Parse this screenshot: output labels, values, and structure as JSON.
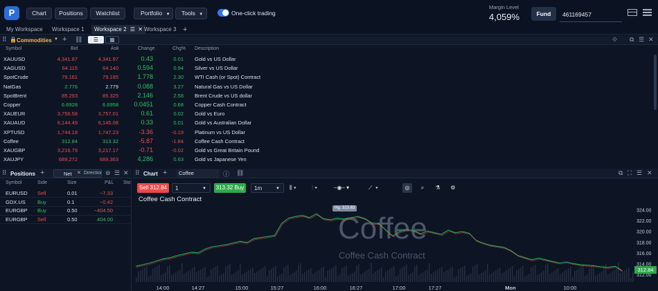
{
  "topbar": {
    "logo": "P",
    "nav": [
      "Chart",
      "Positions",
      "Watchlist"
    ],
    "portfolio": "Portfolio",
    "tools": "Tools",
    "one_click": "One-click trading",
    "margin_label": "Margin Level",
    "margin_value": "4,059%",
    "fund": "Fund",
    "account": "461169457"
  },
  "workspaces": [
    "My Workspace",
    "Workspace 1",
    "Workspace 2",
    "Workspace 3"
  ],
  "watchlist": {
    "title": "Commodities",
    "columns": [
      "Symbol",
      "Bid",
      "Ask",
      "Change",
      "Chg%",
      "Description"
    ],
    "rows": [
      {
        "symbol": "XAUUSD",
        "bid": "4,341.87",
        "ask": "4,341.97",
        "change": "0.43",
        "chg": "0.01",
        "desc": "Gold vs US Dollar",
        "bid_c": "red",
        "ask_c": "red",
        "ch_c": "green"
      },
      {
        "symbol": "XAGUSD",
        "bid": "64.115",
        "ask": "64.140",
        "change": "0.594",
        "chg": "0.94",
        "desc": "Silver vs US Dollar",
        "bid_c": "red",
        "ask_c": "red",
        "ch_c": "green"
      },
      {
        "symbol": "SpotCrude",
        "bid": "79.161",
        "ask": "79.185",
        "change": "1.778",
        "chg": "2.30",
        "desc": "WTI Cash (or Spot) Contract",
        "bid_c": "red",
        "ask_c": "red",
        "ch_c": "green"
      },
      {
        "symbol": "NatGas",
        "bid": "2.776",
        "ask": "2.779",
        "change": "0.088",
        "chg": "3.27",
        "desc": "Natural Gas vs US Dollar",
        "bid_c": "green",
        "ask_c": "wht",
        "ch_c": "green"
      },
      {
        "symbol": "SpotBrent",
        "bid": "85.293",
        "ask": "85.325",
        "change": "2.146",
        "chg": "2.58",
        "desc": "Brent Crude vs US dollar",
        "bid_c": "red",
        "ask_c": "red",
        "ch_c": "green"
      },
      {
        "symbol": "Copper",
        "bid": "6.6928",
        "ask": "6.6958",
        "change": "0.0451",
        "chg": "0.68",
        "desc": "Copper Cash Contract",
        "bid_c": "green",
        "ask_c": "green",
        "ch_c": "green"
      },
      {
        "symbol": "XAUEUR",
        "bid": "3,756.58",
        "ask": "3,757.01",
        "change": "0.61",
        "chg": "0.02",
        "desc": "Gold vs Euro",
        "bid_c": "red",
        "ask_c": "red",
        "ch_c": "green"
      },
      {
        "symbol": "XAUAUD",
        "bid": "6,144.49",
        "ask": "6,145.08",
        "change": "0.33",
        "chg": "0.01",
        "desc": "Gold vs Australian Dollar",
        "bid_c": "red",
        "ask_c": "red",
        "ch_c": "green"
      },
      {
        "symbol": "XPTUSD",
        "bid": "1,744.18",
        "ask": "1,747.23",
        "change": "-3.36",
        "chg": "-0.19",
        "desc": "Platinum vs US Dollar",
        "bid_c": "red",
        "ask_c": "red",
        "ch_c": "red"
      },
      {
        "symbol": "Coffee",
        "bid": "312.84",
        "ask": "313.32",
        "change": "-5.87",
        "chg": "-1.84",
        "desc": "Coffee Cash Contract",
        "bid_c": "green",
        "ask_c": "green",
        "ch_c": "red"
      },
      {
        "symbol": "XAUGBP",
        "bid": "3,216.79",
        "ask": "3,217.17",
        "change": "-0.71",
        "chg": "-0.02",
        "desc": "Gold vs Great Britain Pound",
        "bid_c": "red",
        "ask_c": "red",
        "ch_c": "red"
      },
      {
        "symbol": "XAUJPY",
        "bid": "689,272",
        "ask": "689,363",
        "change": "4,286",
        "chg": "0.63",
        "desc": "Gold vs Japanese Yen",
        "bid_c": "red",
        "ask_c": "red",
        "ch_c": "green"
      }
    ]
  },
  "positions": {
    "title": "Positions",
    "filter_net": "Net",
    "filter_dir": "Direction",
    "columns": [
      "Symbol",
      "Side",
      "Size",
      "P&L",
      "Sto"
    ],
    "rows": [
      {
        "symbol": "EURUSD",
        "side": "Sell",
        "size": "0.01",
        "pl": "−7.33",
        "side_c": "red",
        "pl_c": "red"
      },
      {
        "symbol": "GDX.US",
        "side": "Buy",
        "size": "0.1",
        "pl": "−0.42",
        "side_c": "green",
        "pl_c": "red"
      },
      {
        "symbol": "EURGBP",
        "side": "Buy",
        "size": "0.50",
        "pl": "−404.50",
        "side_c": "green",
        "pl_c": "red"
      },
      {
        "symbol": "EURGBP",
        "side": "Sell",
        "size": "0.50",
        "pl": "404.00",
        "side_c": "red",
        "pl_c": "green"
      }
    ]
  },
  "chart": {
    "title": "Chart",
    "symbol": "Coffee",
    "sell_label": "Sell 312.84",
    "qty": "1",
    "buy_label": "313.32 Buy",
    "timeframe": "1m",
    "chart_title": "Coffee Cash Contract",
    "watermark": "Coffee",
    "watermark_sub": "Coffee Cash Contract",
    "high_badge": "Hg. 323.83",
    "price_badge": "312.84"
  },
  "chart_data": {
    "type": "line",
    "title": "Coffee Cash Contract",
    "yticks": [
      "324.00",
      "322.00",
      "320.00",
      "318.00",
      "316.00",
      "314.00",
      "312.00"
    ],
    "xticks": [
      "14:00",
      "14:27",
      "15:00",
      "15:27",
      "16:00",
      "16:27",
      "17:00",
      "17:27",
      "Mon",
      "10:00"
    ],
    "ylim": [
      311.2,
      325.0
    ],
    "x": [
      0,
      10,
      20,
      30,
      40,
      50,
      60,
      70,
      80,
      90,
      100,
      110,
      120,
      130,
      140,
      150,
      160,
      170,
      180,
      190,
      200,
      210,
      220,
      230,
      240,
      250,
      260,
      270,
      280,
      290,
      300,
      310,
      320,
      330,
      340,
      350,
      360,
      370,
      380,
      390,
      400,
      410,
      420,
      430,
      440,
      450,
      460,
      470,
      480,
      490,
      500,
      510,
      520,
      530,
      540,
      550,
      560,
      570,
      580,
      590,
      600,
      610,
      620,
      630,
      640,
      650,
      660,
      670,
      680,
      690,
      700
    ],
    "values": [
      313.6,
      313.9,
      314.2,
      314.6,
      315.0,
      315.2,
      315.6,
      315.9,
      316.2,
      316.1,
      316.8,
      317.2,
      317.4,
      317.6,
      317.9,
      318.2,
      318.0,
      318.7,
      318.9,
      319.1,
      319.3,
      321.5,
      322.5,
      322.8,
      323.0,
      322.6,
      323.3,
      322.4,
      322.2,
      322.5,
      322.3,
      322.6,
      322.8,
      322.4,
      321.6,
      321.5,
      320.3,
      319.2,
      320.0,
      320.4,
      320.2,
      319.6,
      320.1,
      319.8,
      319.5,
      320.3,
      319.8,
      320.0,
      319.7,
      318.4,
      317.9,
      317.5,
      317.3,
      317.1,
      316.5,
      315.6,
      315.2,
      314.8,
      315.1,
      314.8,
      314.5,
      314.2,
      314.4,
      314.1,
      313.9,
      313.8,
      313.7,
      313.5,
      313.4,
      313.6,
      312.8
    ]
  },
  "colors": {
    "accent": "#2f7be8",
    "up": "#31c15c",
    "down": "#ee4b4b"
  }
}
